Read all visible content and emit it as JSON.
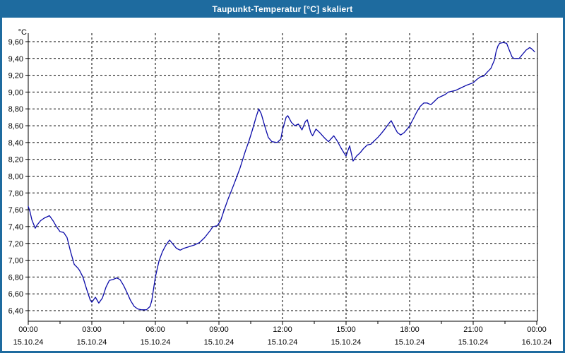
{
  "window": {
    "title": "Taupunkt-Temperatur [°C] skaliert"
  },
  "colors": {
    "titlebar_bg": "#1E6B9F",
    "window_border": "#1E6B9F",
    "plot_background": "#FFFFFF",
    "grid_color": "#000000",
    "axis_color": "#000000",
    "label_color": "#000000",
    "curve_color": "#0B0BA8",
    "title_text": "#FFFFFF"
  },
  "chart_data": {
    "type": "line",
    "title": "Taupunkt-Temperatur [°C] skaliert",
    "unit_label": "°C",
    "grid": "dashed",
    "legend": "none",
    "ylim": [
      6.4,
      9.6
    ],
    "yticks": [
      {
        "v": 9.6,
        "label": "9,60"
      },
      {
        "v": 9.4,
        "label": "9,40"
      },
      {
        "v": 9.2,
        "label": "9,20"
      },
      {
        "v": 9.0,
        "label": "9,00"
      },
      {
        "v": 8.8,
        "label": "8,80"
      },
      {
        "v": 8.6,
        "label": "8,60"
      },
      {
        "v": 8.4,
        "label": "8,40"
      },
      {
        "v": 8.2,
        "label": "8,20"
      },
      {
        "v": 8.0,
        "label": "8,00"
      },
      {
        "v": 7.8,
        "label": "7,80"
      },
      {
        "v": 7.6,
        "label": "7,60"
      },
      {
        "v": 7.4,
        "label": "7,40"
      },
      {
        "v": 7.2,
        "label": "7,20"
      },
      {
        "v": 7.0,
        "label": "7,00"
      },
      {
        "v": 6.8,
        "label": "6,80"
      },
      {
        "v": 6.6,
        "label": "6,60"
      },
      {
        "v": 6.4,
        "label": "6,40"
      }
    ],
    "xlim_hours": [
      0,
      24
    ],
    "xticks": [
      {
        "hour": 0,
        "time": "00:00",
        "date": "15.10.24"
      },
      {
        "hour": 3,
        "time": "03:00",
        "date": "15.10.24"
      },
      {
        "hour": 6,
        "time": "06:00",
        "date": "15.10.24"
      },
      {
        "hour": 9,
        "time": "09:00",
        "date": "15.10.24"
      },
      {
        "hour": 12,
        "time": "12:00",
        "date": "15.10.24"
      },
      {
        "hour": 15,
        "time": "15:00",
        "date": "15.10.24"
      },
      {
        "hour": 18,
        "time": "18:00",
        "date": "15.10.24"
      },
      {
        "hour": 21,
        "time": "21:00",
        "date": "15.10.24"
      },
      {
        "hour": 24,
        "time": "00:00",
        "date": "16.10.24"
      }
    ],
    "minor_tick_interval_hours": 1.5,
    "series": [
      {
        "name": "Taupunkt-Temperatur",
        "points": [
          [
            0.0,
            7.64
          ],
          [
            0.08,
            7.58
          ],
          [
            0.17,
            7.48
          ],
          [
            0.33,
            7.38
          ],
          [
            0.42,
            7.42
          ],
          [
            0.58,
            7.47
          ],
          [
            0.75,
            7.5
          ],
          [
            1.0,
            7.53
          ],
          [
            1.17,
            7.47
          ],
          [
            1.33,
            7.4
          ],
          [
            1.5,
            7.34
          ],
          [
            1.67,
            7.33
          ],
          [
            1.83,
            7.27
          ],
          [
            2.0,
            7.1
          ],
          [
            2.17,
            6.95
          ],
          [
            2.33,
            6.91
          ],
          [
            2.42,
            6.88
          ],
          [
            2.58,
            6.8
          ],
          [
            2.75,
            6.66
          ],
          [
            2.92,
            6.53
          ],
          [
            3.0,
            6.5
          ],
          [
            3.17,
            6.56
          ],
          [
            3.33,
            6.49
          ],
          [
            3.5,
            6.55
          ],
          [
            3.67,
            6.68
          ],
          [
            3.83,
            6.76
          ],
          [
            4.0,
            6.77
          ],
          [
            4.17,
            6.79
          ],
          [
            4.33,
            6.77
          ],
          [
            4.5,
            6.7
          ],
          [
            4.67,
            6.61
          ],
          [
            4.83,
            6.52
          ],
          [
            5.0,
            6.45
          ],
          [
            5.17,
            6.42
          ],
          [
            5.33,
            6.41
          ],
          [
            5.58,
            6.41
          ],
          [
            5.75,
            6.45
          ],
          [
            5.83,
            6.52
          ],
          [
            6.0,
            6.8
          ],
          [
            6.17,
            6.99
          ],
          [
            6.33,
            7.1
          ],
          [
            6.5,
            7.18
          ],
          [
            6.67,
            7.24
          ],
          [
            6.83,
            7.19
          ],
          [
            7.0,
            7.14
          ],
          [
            7.17,
            7.12
          ],
          [
            7.33,
            7.14
          ],
          [
            7.58,
            7.16
          ],
          [
            7.83,
            7.18
          ],
          [
            8.08,
            7.21
          ],
          [
            8.33,
            7.27
          ],
          [
            8.58,
            7.35
          ],
          [
            8.72,
            7.4
          ],
          [
            8.92,
            7.41
          ],
          [
            9.08,
            7.47
          ],
          [
            9.25,
            7.6
          ],
          [
            9.42,
            7.72
          ],
          [
            9.58,
            7.82
          ],
          [
            9.75,
            7.93
          ],
          [
            10.0,
            8.1
          ],
          [
            10.25,
            8.3
          ],
          [
            10.42,
            8.42
          ],
          [
            10.58,
            8.55
          ],
          [
            10.75,
            8.7
          ],
          [
            10.88,
            8.8
          ],
          [
            11.0,
            8.74
          ],
          [
            11.17,
            8.59
          ],
          [
            11.33,
            8.46
          ],
          [
            11.5,
            8.41
          ],
          [
            11.75,
            8.4
          ],
          [
            11.92,
            8.44
          ],
          [
            12.0,
            8.55
          ],
          [
            12.17,
            8.7
          ],
          [
            12.25,
            8.72
          ],
          [
            12.42,
            8.64
          ],
          [
            12.58,
            8.6
          ],
          [
            12.75,
            8.62
          ],
          [
            12.92,
            8.55
          ],
          [
            13.08,
            8.65
          ],
          [
            13.17,
            8.67
          ],
          [
            13.33,
            8.52
          ],
          [
            13.42,
            8.48
          ],
          [
            13.58,
            8.56
          ],
          [
            13.75,
            8.52
          ],
          [
            14.0,
            8.45
          ],
          [
            14.17,
            8.41
          ],
          [
            14.42,
            8.48
          ],
          [
            14.58,
            8.42
          ],
          [
            14.75,
            8.34
          ],
          [
            14.92,
            8.27
          ],
          [
            15.0,
            8.24
          ],
          [
            15.08,
            8.3
          ],
          [
            15.17,
            8.36
          ],
          [
            15.33,
            8.18
          ],
          [
            15.5,
            8.24
          ],
          [
            15.67,
            8.28
          ],
          [
            15.83,
            8.33
          ],
          [
            16.0,
            8.37
          ],
          [
            16.17,
            8.38
          ],
          [
            16.33,
            8.42
          ],
          [
            16.5,
            8.46
          ],
          [
            16.67,
            8.51
          ],
          [
            16.83,
            8.56
          ],
          [
            17.0,
            8.62
          ],
          [
            17.13,
            8.66
          ],
          [
            17.25,
            8.6
          ],
          [
            17.42,
            8.52
          ],
          [
            17.58,
            8.49
          ],
          [
            17.75,
            8.52
          ],
          [
            17.92,
            8.57
          ],
          [
            18.0,
            8.6
          ],
          [
            18.17,
            8.68
          ],
          [
            18.33,
            8.76
          ],
          [
            18.5,
            8.83
          ],
          [
            18.67,
            8.87
          ],
          [
            18.83,
            8.87
          ],
          [
            19.0,
            8.85
          ],
          [
            19.17,
            8.89
          ],
          [
            19.33,
            8.93
          ],
          [
            19.5,
            8.95
          ],
          [
            19.67,
            8.97
          ],
          [
            19.83,
            9.0
          ],
          [
            20.0,
            9.01
          ],
          [
            20.17,
            9.02
          ],
          [
            20.42,
            9.05
          ],
          [
            20.67,
            9.08
          ],
          [
            21.0,
            9.11
          ],
          [
            21.17,
            9.15
          ],
          [
            21.33,
            9.18
          ],
          [
            21.5,
            9.19
          ],
          [
            21.67,
            9.24
          ],
          [
            21.83,
            9.28
          ],
          [
            22.0,
            9.38
          ],
          [
            22.08,
            9.48
          ],
          [
            22.17,
            9.55
          ],
          [
            22.25,
            9.58
          ],
          [
            22.42,
            9.59
          ],
          [
            22.58,
            9.58
          ],
          [
            22.67,
            9.52
          ],
          [
            22.83,
            9.42
          ],
          [
            22.92,
            9.4
          ],
          [
            23.17,
            9.4
          ],
          [
            23.33,
            9.45
          ],
          [
            23.5,
            9.5
          ],
          [
            23.67,
            9.53
          ],
          [
            23.78,
            9.51
          ],
          [
            23.9,
            9.48
          ]
        ]
      }
    ]
  }
}
